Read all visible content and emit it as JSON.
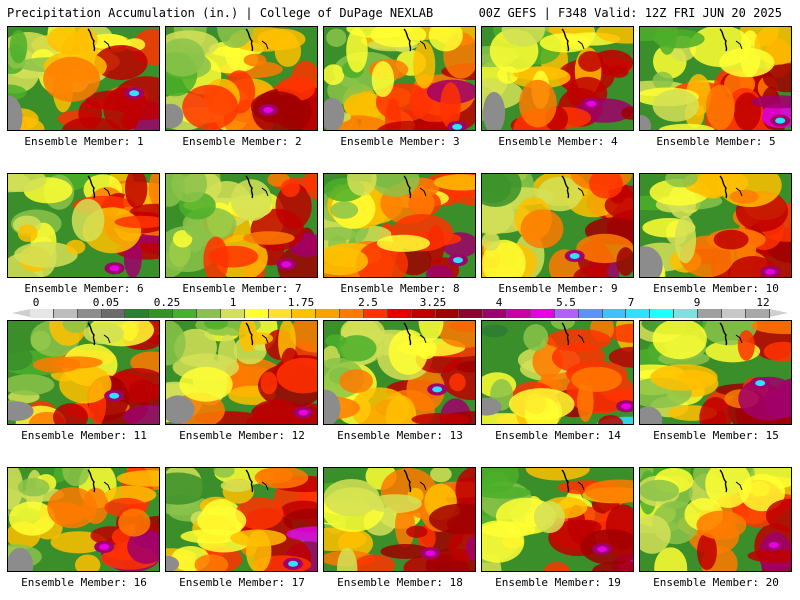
{
  "header": {
    "left": "Precipitation Accumulation (in.) | College of DuPage NEXLAB",
    "right": "00Z GEFS | F348 Valid: 12Z FRI JUN 20 2025"
  },
  "panels": [
    {
      "label": "Ensemble Member: 1"
    },
    {
      "label": "Ensemble Member: 2"
    },
    {
      "label": "Ensemble Member: 3"
    },
    {
      "label": "Ensemble Member: 4"
    },
    {
      "label": "Ensemble Member: 5"
    },
    {
      "label": "Ensemble Member: 6"
    },
    {
      "label": "Ensemble Member: 7"
    },
    {
      "label": "Ensemble Member: 8"
    },
    {
      "label": "Ensemble Member: 9"
    },
    {
      "label": "Ensemble Member: 10"
    },
    {
      "label": "Ensemble Member: 11"
    },
    {
      "label": "Ensemble Member: 12"
    },
    {
      "label": "Ensemble Member: 13"
    },
    {
      "label": "Ensemble Member: 14"
    },
    {
      "label": "Ensemble Member: 15"
    },
    {
      "label": "Ensemble Member: 16"
    },
    {
      "label": "Ensemble Member: 17"
    },
    {
      "label": "Ensemble Member: 18"
    },
    {
      "label": "Ensemble Member: 19"
    },
    {
      "label": "Ensemble Member: 20"
    }
  ],
  "colorbar": {
    "tick_labels": [
      "0",
      "0.05",
      "0.25",
      "1",
      "1.75",
      "2.5",
      "3.25",
      "4",
      "5.5",
      "7",
      "9",
      "12"
    ],
    "colors": [
      "#e6e6e6",
      "#bdbdbd",
      "#8c8c8c",
      "#6b6b6b",
      "#2e7d32",
      "#3a8f2a",
      "#4caf2a",
      "#8bc34a",
      "#d4e157",
      "#ffff33",
      "#ffe033",
      "#ffc000",
      "#ffa000",
      "#ff7a00",
      "#ff3300",
      "#e60000",
      "#c00000",
      "#a00000",
      "#900030",
      "#a0006a",
      "#c800a8",
      "#e600e6",
      "#b060ff",
      "#6090ff",
      "#40c0ff",
      "#30e0ff",
      "#20ffff",
      "#80e0e0",
      "#a0a0a0",
      "#c8c8c8",
      "#a8a8a8"
    ]
  }
}
